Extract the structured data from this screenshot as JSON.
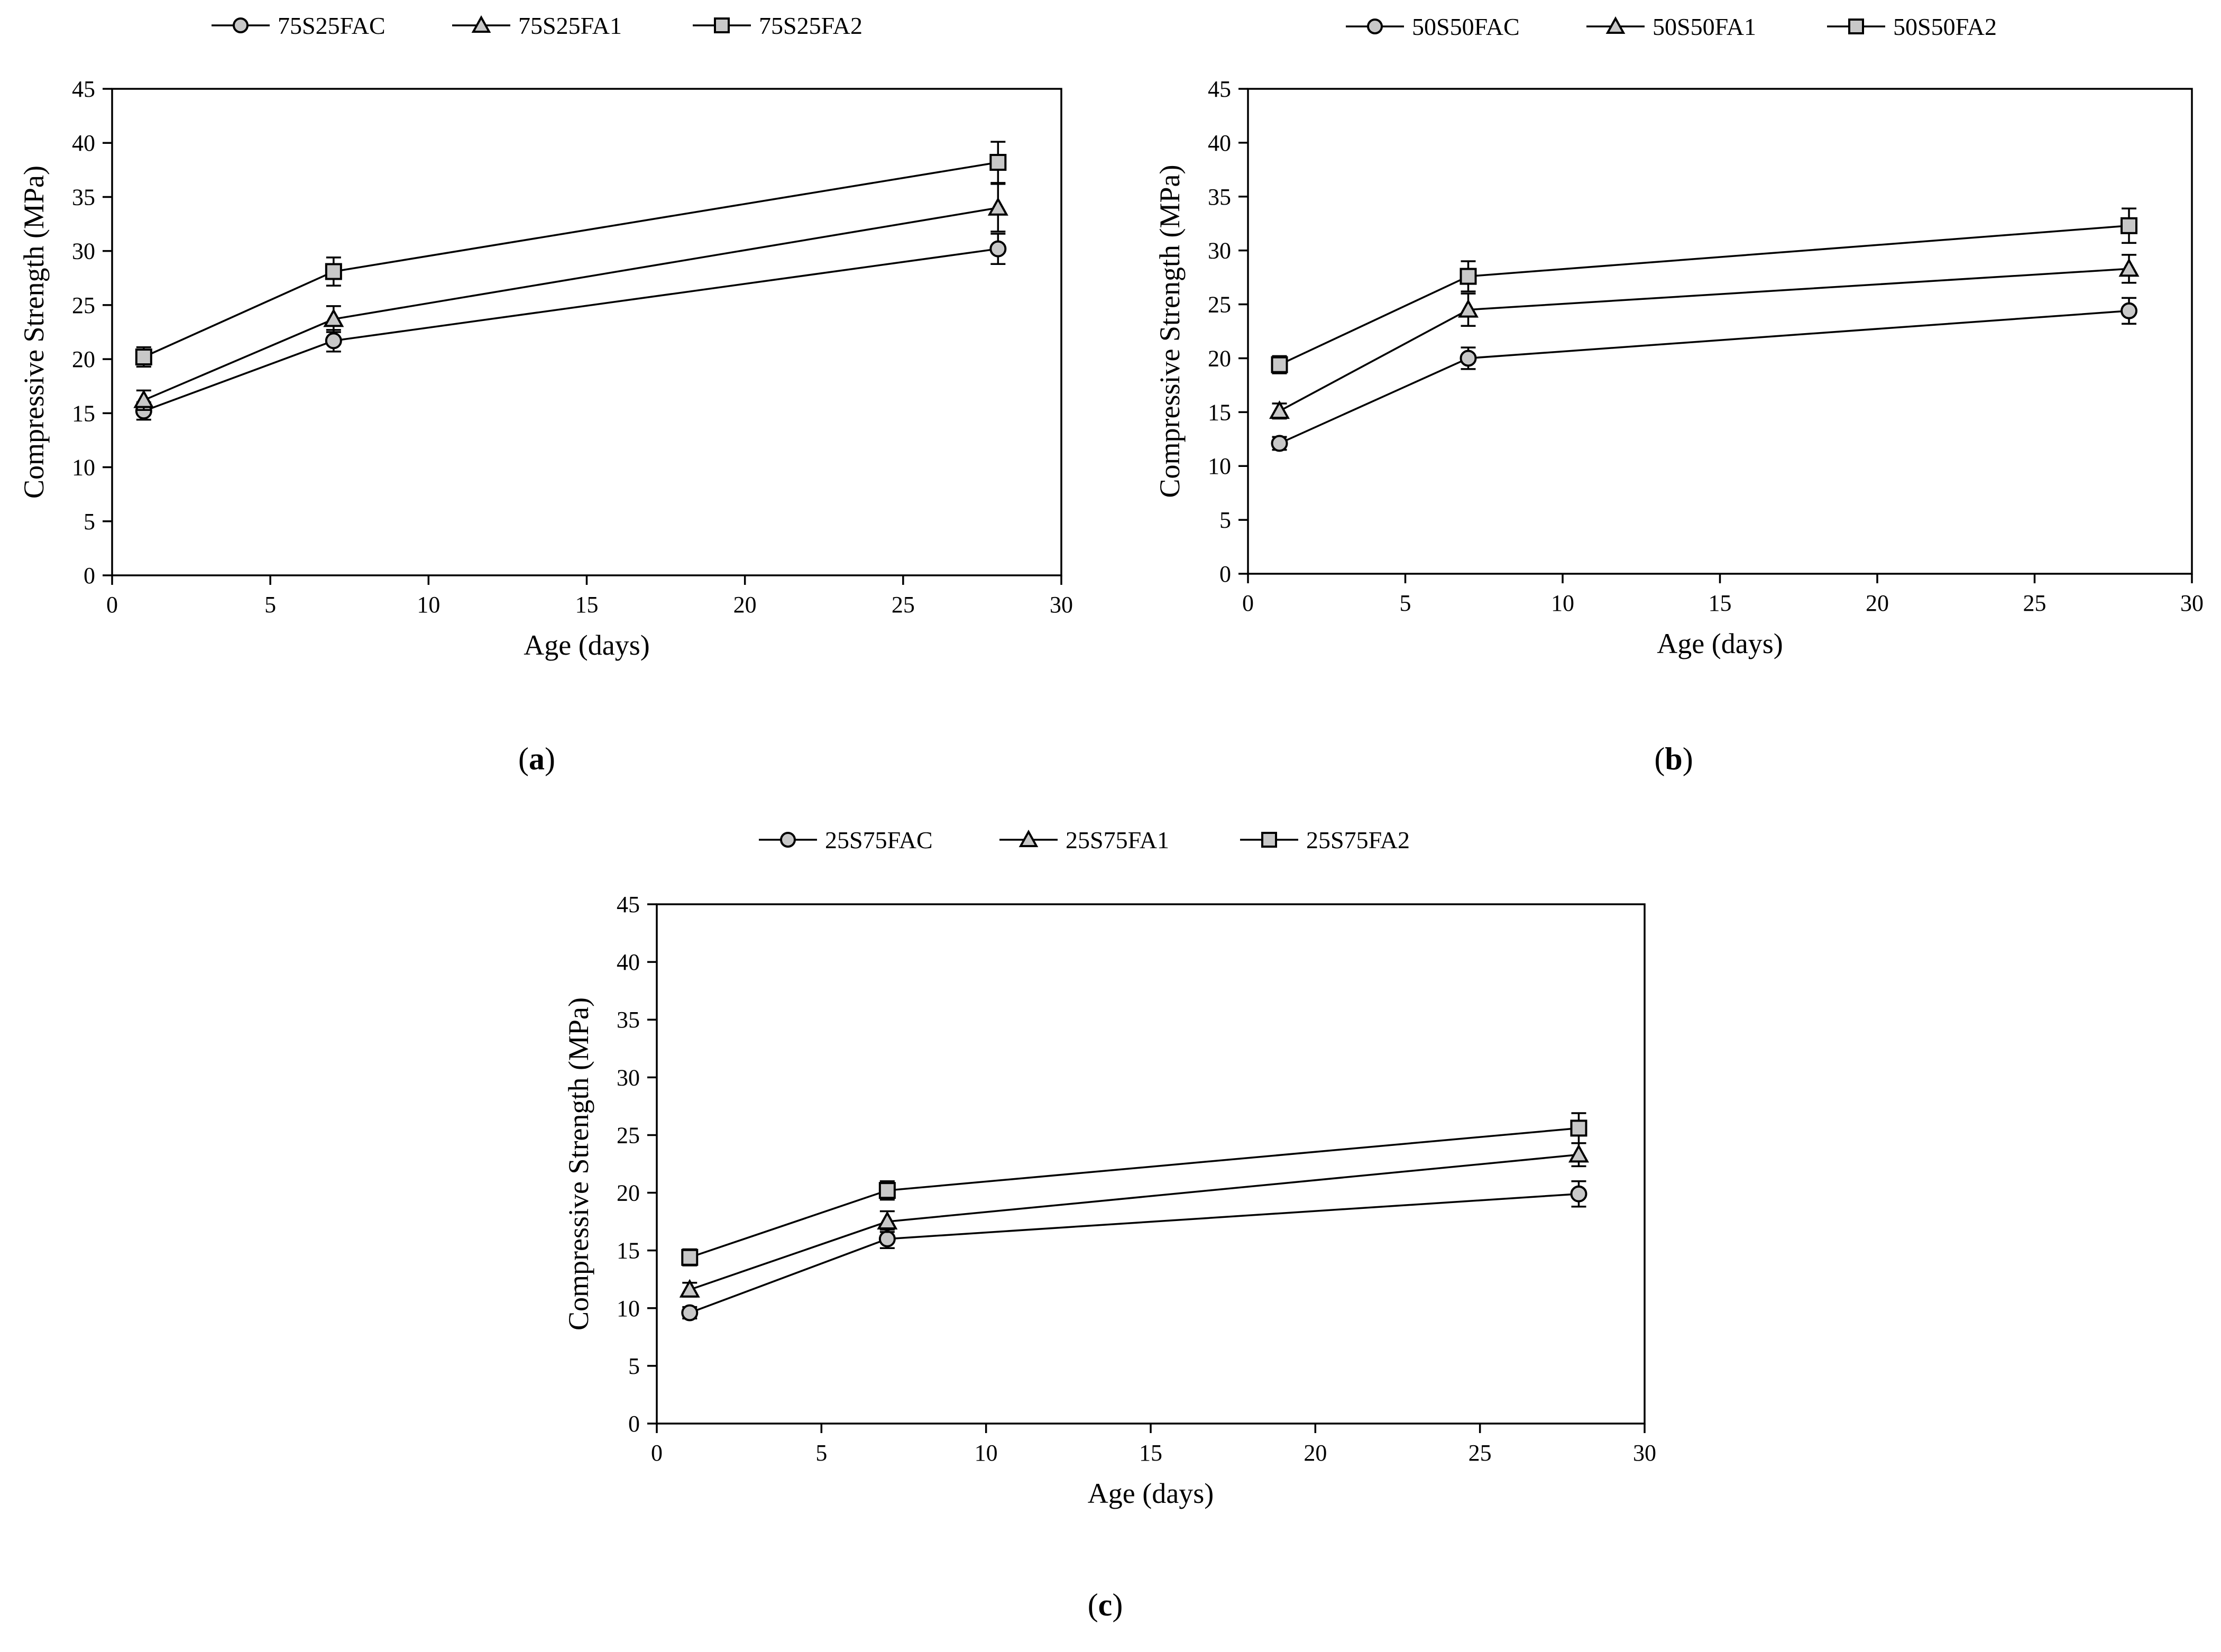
{
  "chart_data": [
    {
      "type": "line",
      "panel_label": "a",
      "xlabel": "Age (days)",
      "ylabel": "Compressive Strength (MPa)",
      "xlim": [
        0,
        30
      ],
      "ylim": [
        0,
        45
      ],
      "xticks": [
        "0",
        "5",
        "10",
        "15",
        "20",
        "25",
        "30"
      ],
      "yticks": [
        "0",
        "5",
        "10",
        "15",
        "20",
        "25",
        "30",
        "35",
        "40",
        "45"
      ],
      "legend_position": "top",
      "grid": false,
      "x": [
        1,
        7,
        28
      ],
      "series": [
        {
          "name": "75S25FAC",
          "marker": "circle",
          "values": [
            15.2,
            21.7,
            30.2
          ],
          "errors": [
            0.8,
            1.0,
            1.4
          ]
        },
        {
          "name": "75S25FA1",
          "marker": "triangle",
          "values": [
            16.2,
            23.7,
            34.0
          ],
          "errors": [
            0.9,
            1.2,
            2.2
          ]
        },
        {
          "name": "75S25FA2",
          "marker": "square",
          "values": [
            20.2,
            28.1,
            38.2
          ],
          "errors": [
            0.9,
            1.3,
            1.9
          ]
        }
      ]
    },
    {
      "type": "line",
      "panel_label": "b",
      "xlabel": "Age (days)",
      "ylabel": "Compressive Strength (MPa)",
      "xlim": [
        0,
        30
      ],
      "ylim": [
        0,
        45
      ],
      "xticks": [
        "0",
        "5",
        "10",
        "15",
        "20",
        "25",
        "30"
      ],
      "yticks": [
        "0",
        "5",
        "10",
        "15",
        "20",
        "25",
        "30",
        "35",
        "40",
        "45"
      ],
      "legend_position": "top",
      "grid": false,
      "x": [
        1,
        7,
        28
      ],
      "series": [
        {
          "name": "50S50FAC",
          "marker": "circle",
          "values": [
            12.1,
            20.0,
            24.4
          ],
          "errors": [
            0.6,
            1.0,
            1.2
          ]
        },
        {
          "name": "50S50FA1",
          "marker": "triangle",
          "values": [
            15.1,
            24.5,
            28.3
          ],
          "errors": [
            0.7,
            1.5,
            1.3
          ]
        },
        {
          "name": "50S50FA2",
          "marker": "square",
          "values": [
            19.4,
            27.6,
            32.3
          ],
          "errors": [
            0.8,
            1.4,
            1.6
          ]
        }
      ]
    },
    {
      "type": "line",
      "panel_label": "c",
      "xlabel": "Age (days)",
      "ylabel": "Compressive Strength (MPa)",
      "xlim": [
        0,
        30
      ],
      "ylim": [
        0,
        45
      ],
      "xticks": [
        "0",
        "5",
        "10",
        "15",
        "20",
        "25",
        "30"
      ],
      "yticks": [
        "0",
        "5",
        "10",
        "15",
        "20",
        "25",
        "30",
        "35",
        "40",
        "45"
      ],
      "legend_position": "top",
      "grid": false,
      "x": [
        1,
        7,
        28
      ],
      "series": [
        {
          "name": "25S75FAC",
          "marker": "circle",
          "values": [
            9.6,
            16.0,
            19.9
          ],
          "errors": [
            0.5,
            0.8,
            1.1
          ]
        },
        {
          "name": "25S75FA1",
          "marker": "triangle",
          "values": [
            11.6,
            17.5,
            23.3
          ],
          "errors": [
            0.6,
            0.9,
            1.0
          ]
        },
        {
          "name": "25S75FA2",
          "marker": "square",
          "values": [
            14.4,
            20.2,
            25.6
          ],
          "errors": [
            0.7,
            0.8,
            1.3
          ]
        }
      ]
    }
  ],
  "style": {
    "line_color": "#000000",
    "marker_fill": "#c8c8c8",
    "axis_color": "#000000"
  }
}
